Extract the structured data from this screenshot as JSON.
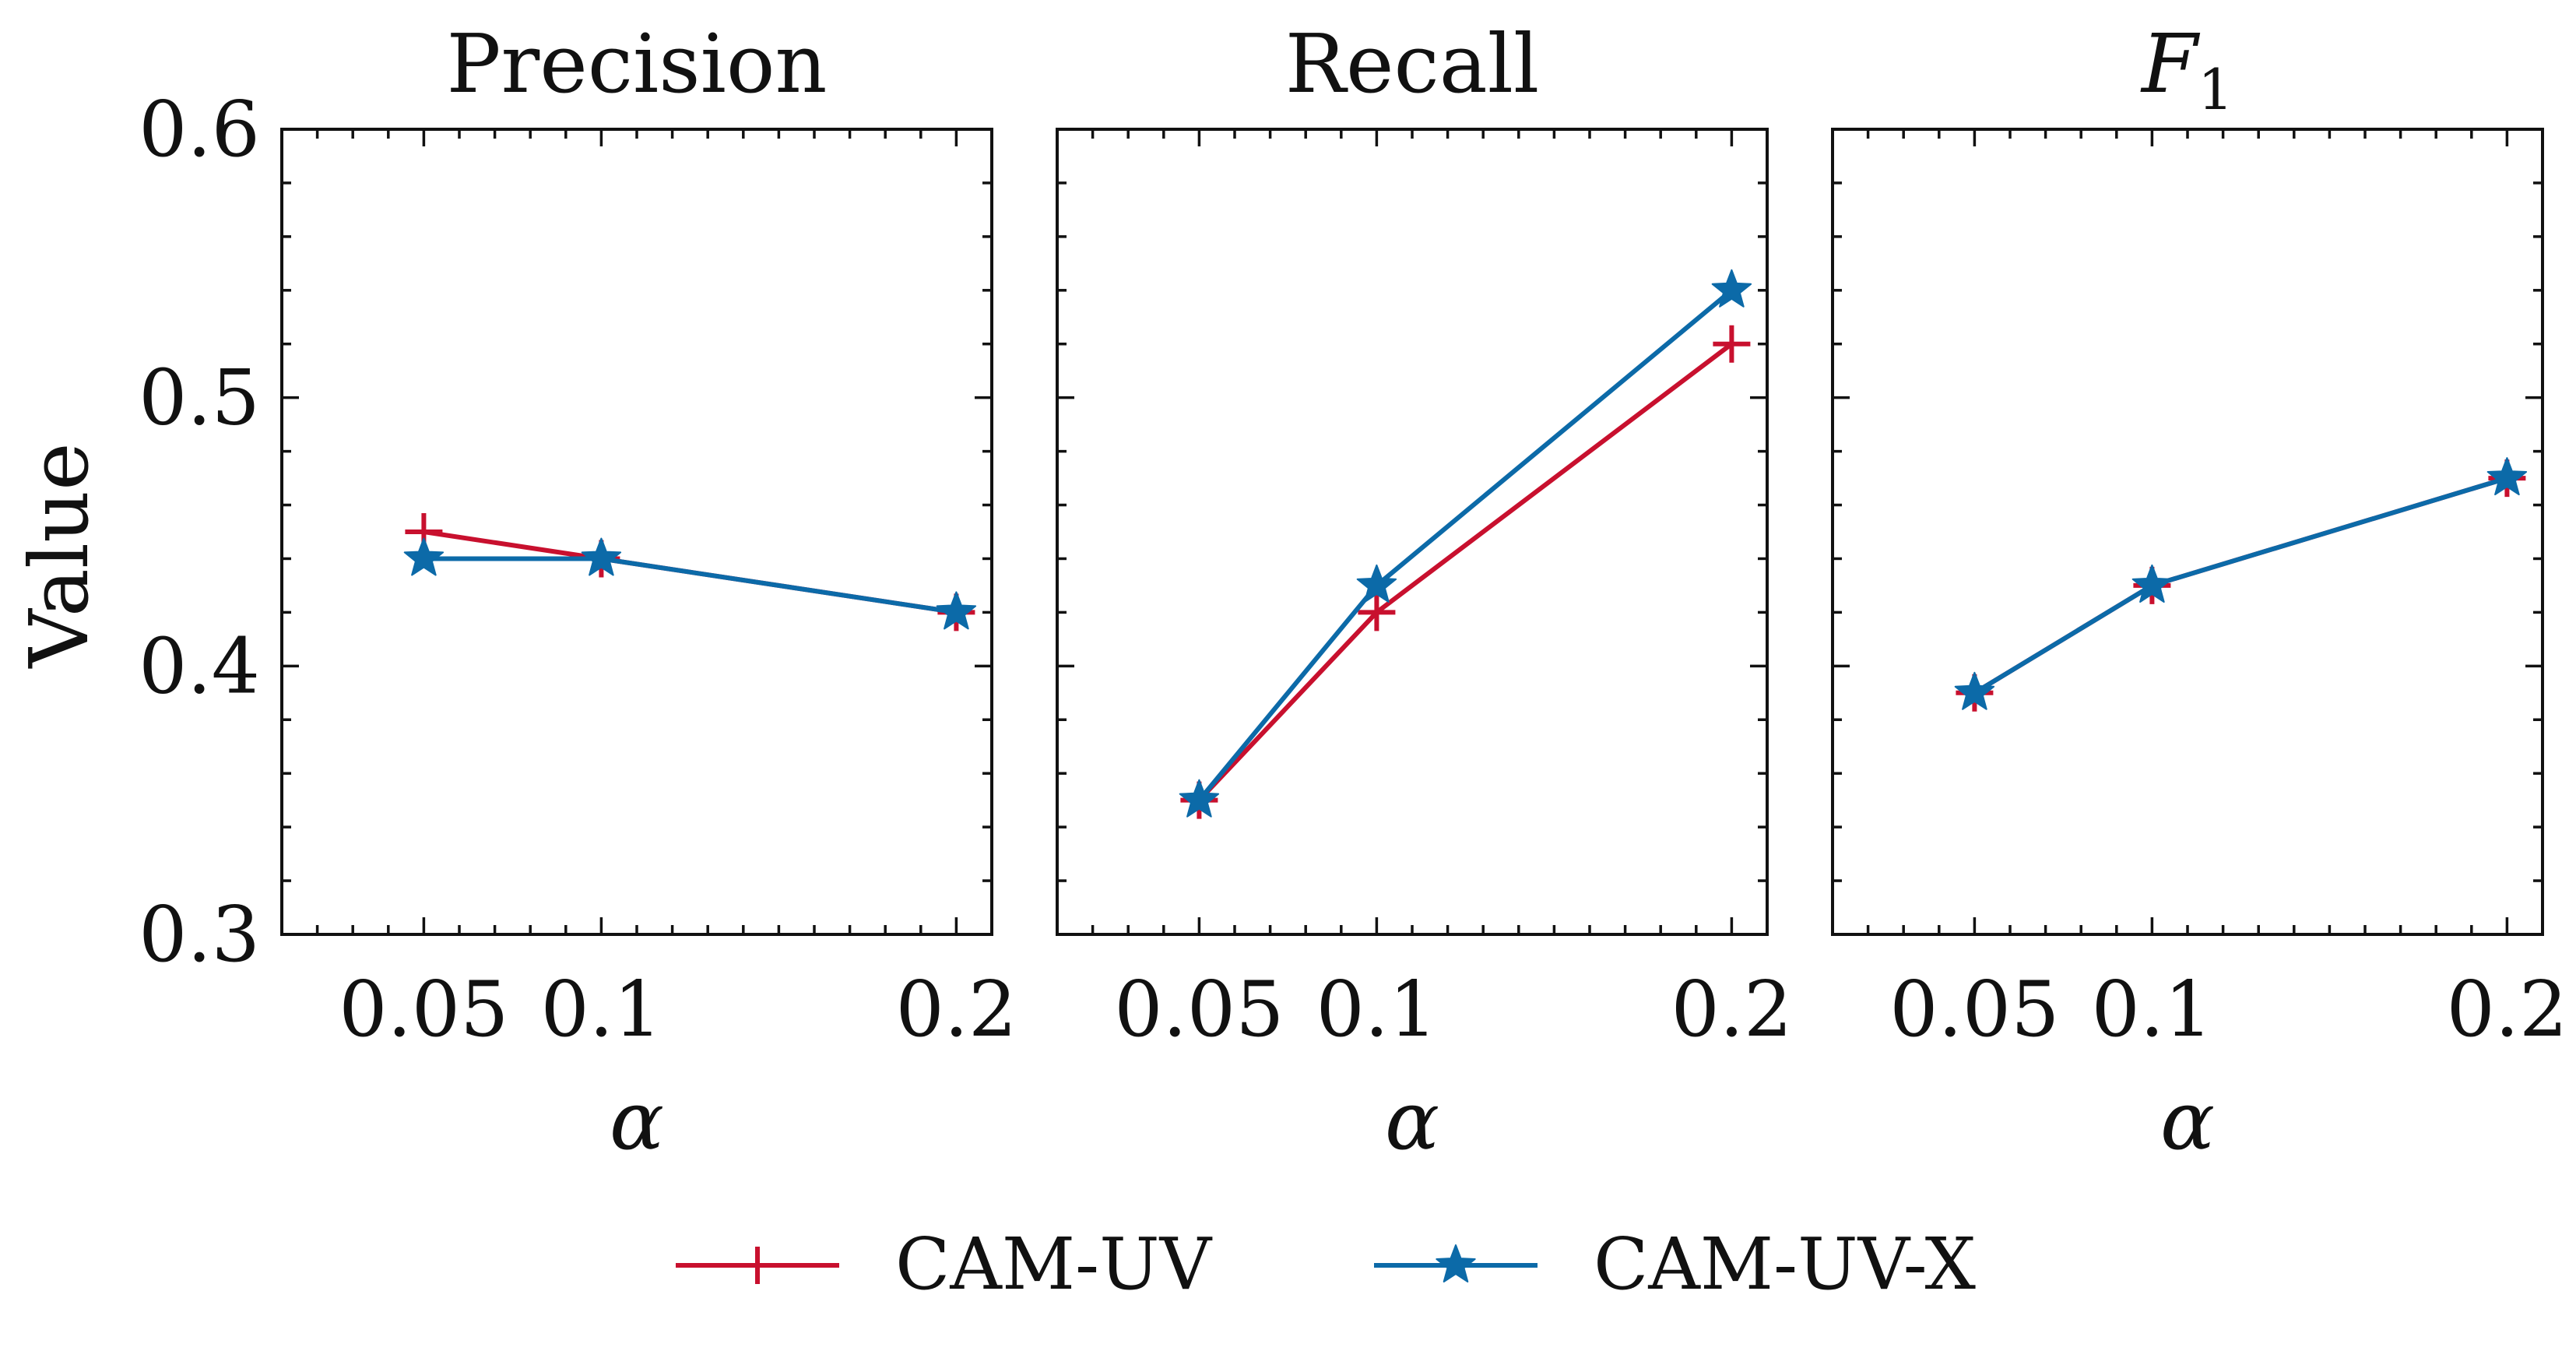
{
  "colors": {
    "cam_uv": "#c8102e",
    "cam_uv_x": "#0c6aa8"
  },
  "chart_data": [
    {
      "type": "line",
      "title": "Precision",
      "xlabel": "α",
      "ylabel": "Value",
      "x": [
        0.05,
        0.1,
        0.2
      ],
      "xticklabels": [
        "0.05",
        "0.1",
        "0.2"
      ],
      "yticks": [
        0.3,
        0.4,
        0.5,
        0.6
      ],
      "yticklabels": [
        "0.3",
        "0.4",
        "0.5",
        "0.6"
      ],
      "ylim": [
        0.3,
        0.6
      ],
      "xlim": [
        0.01,
        0.21
      ],
      "series": [
        {
          "name": "CAM-UV",
          "values": [
            0.45,
            0.44,
            0.42
          ]
        },
        {
          "name": "CAM-UV-X",
          "values": [
            0.44,
            0.44,
            0.42
          ]
        }
      ]
    },
    {
      "type": "line",
      "title": "Recall",
      "xlabel": "α",
      "x": [
        0.05,
        0.1,
        0.2
      ],
      "xticklabels": [
        "0.05",
        "0.1",
        "0.2"
      ],
      "ylim": [
        0.3,
        0.6
      ],
      "xlim": [
        0.01,
        0.21
      ],
      "series": [
        {
          "name": "CAM-UV",
          "values": [
            0.35,
            0.42,
            0.52
          ]
        },
        {
          "name": "CAM-UV-X",
          "values": [
            0.35,
            0.43,
            0.54
          ]
        }
      ]
    },
    {
      "type": "line",
      "title": "F",
      "title_subscript": "1",
      "xlabel": "α",
      "x": [
        0.05,
        0.1,
        0.2
      ],
      "xticklabels": [
        "0.05",
        "0.1",
        "0.2"
      ],
      "ylim": [
        0.3,
        0.6
      ],
      "xlim": [
        0.01,
        0.21
      ],
      "series": [
        {
          "name": "CAM-UV",
          "values": [
            0.39,
            0.43,
            0.47
          ]
        },
        {
          "name": "CAM-UV-X",
          "values": [
            0.39,
            0.43,
            0.47
          ]
        }
      ]
    }
  ],
  "legend": {
    "position": "bottom-center",
    "items": [
      {
        "name": "CAM-UV",
        "marker": "plus-marker-icon"
      },
      {
        "name": "CAM-UV-X",
        "marker": "star-marker-icon"
      }
    ]
  }
}
